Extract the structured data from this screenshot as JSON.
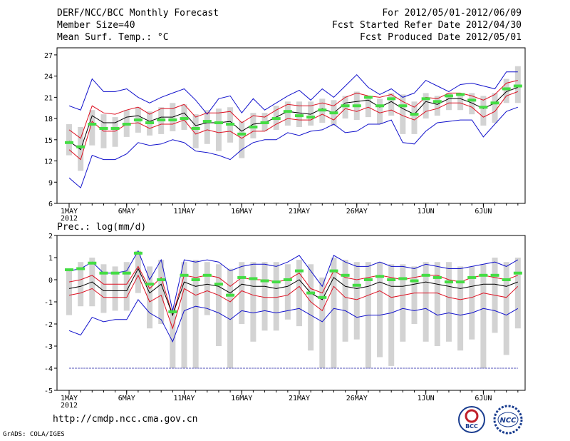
{
  "header": {
    "title": "DERF/NCC/BCC Monthly Forecast",
    "member_size": "Member Size=40",
    "variable1": "Mean Surf. Temp.: °C",
    "period": "For 2012/05/01-2012/06/09",
    "start_ref": "Fcst Started Refer Date 2012/04/30",
    "produced": "Fcst Produced Date 2012/05/01"
  },
  "footer": {
    "url": "http://cmdp.ncc.cma.gov.cn",
    "grads": "GrADS: COLA/IGES",
    "logo1": "BCC",
    "logo2": "NCC"
  },
  "colors": {
    "box": "#d3d3d3",
    "obs": "#44dd44",
    "ens": "#000000",
    "sd": "#dd1122",
    "ext": "#1111cc"
  },
  "chart_data": [
    {
      "type": "box",
      "title": "Mean Surf. Temp.: °C",
      "xlabel": "",
      "ylabel": "°C",
      "ylim": [
        6,
        28
      ],
      "yticks": [
        6,
        9,
        12,
        15,
        18,
        21,
        24,
        27
      ],
      "xticks": [
        {
          "day": 1,
          "label": "1MAY"
        },
        {
          "day": 6,
          "label": "6MAY"
        },
        {
          "day": 11,
          "label": "11MAY"
        },
        {
          "day": 16,
          "label": "16MAY"
        },
        {
          "day": 21,
          "label": "21MAY"
        },
        {
          "day": 26,
          "label": "26MAY"
        },
        {
          "day": 32,
          "label": "1JUN"
        },
        {
          "day": 37,
          "label": "6JUN"
        }
      ],
      "year_label": "2012",
      "x": [
        1,
        2,
        3,
        4,
        5,
        6,
        7,
        8,
        9,
        10,
        11,
        12,
        13,
        14,
        15,
        16,
        17,
        18,
        19,
        20,
        21,
        22,
        23,
        24,
        25,
        26,
        27,
        28,
        29,
        30,
        31,
        32,
        33,
        34,
        35,
        36,
        37,
        38,
        39,
        40
      ],
      "series": [
        {
          "name": "max",
          "values": [
            19.8,
            19.2,
            23.6,
            21.8,
            21.8,
            22.2,
            21.0,
            20.2,
            21.0,
            21.6,
            22.2,
            20.6,
            18.6,
            20.8,
            21.2,
            18.8,
            20.8,
            19.2,
            20.2,
            21.2,
            22.0,
            20.6,
            22.2,
            21.0,
            22.6,
            24.2,
            22.4,
            21.4,
            22.2,
            21.0,
            21.6,
            23.4,
            22.6,
            21.8,
            22.8,
            23.0,
            22.6,
            22.2,
            24.6,
            24.6
          ]
        },
        {
          "name": "plus_sd",
          "values": [
            16.4,
            15.2,
            19.8,
            18.8,
            18.6,
            19.2,
            19.6,
            18.6,
            19.4,
            19.4,
            20.0,
            18.2,
            18.8,
            18.8,
            19.0,
            17.4,
            18.4,
            18.2,
            19.2,
            20.0,
            19.8,
            19.8,
            20.2,
            19.8,
            21.0,
            21.6,
            21.2,
            21.0,
            21.4,
            20.4,
            19.6,
            21.0,
            20.8,
            21.6,
            21.6,
            21.2,
            20.6,
            21.4,
            23.0,
            23.4
          ]
        },
        {
          "name": "ensemble_mean",
          "values": [
            14.8,
            13.6,
            18.4,
            17.4,
            17.4,
            18.2,
            18.4,
            17.6,
            18.2,
            18.2,
            18.8,
            17.0,
            17.4,
            17.4,
            17.6,
            16.2,
            17.2,
            17.4,
            18.2,
            19.0,
            18.8,
            18.6,
            19.4,
            18.8,
            20.2,
            20.4,
            20.6,
            19.6,
            20.4,
            19.4,
            18.6,
            20.4,
            20.0,
            20.8,
            20.8,
            20.2,
            19.4,
            20.2,
            21.8,
            22.4
          ]
        },
        {
          "name": "minus_sd",
          "values": [
            13.6,
            12.2,
            17.6,
            16.2,
            16.2,
            17.2,
            17.4,
            16.6,
            17.2,
            17.2,
            17.8,
            15.8,
            16.4,
            16.0,
            16.2,
            15.2,
            16.2,
            16.2,
            17.2,
            18.0,
            17.8,
            17.8,
            18.6,
            17.8,
            19.4,
            19.0,
            19.6,
            18.8,
            19.2,
            18.4,
            17.8,
            19.0,
            19.4,
            20.2,
            20.2,
            19.6,
            18.2,
            19.0,
            21.2,
            21.8
          ]
        },
        {
          "name": "min",
          "values": [
            9.6,
            8.2,
            12.8,
            12.2,
            12.2,
            13.0,
            14.6,
            14.2,
            14.4,
            15.0,
            14.6,
            13.4,
            13.2,
            12.8,
            12.2,
            13.6,
            14.6,
            15.0,
            15.0,
            16.0,
            15.6,
            16.2,
            16.4,
            17.2,
            16.0,
            16.2,
            17.2,
            17.2,
            17.8,
            14.6,
            14.4,
            16.2,
            17.4,
            17.6,
            17.8,
            17.8,
            15.4,
            17.2,
            19.0,
            19.6
          ]
        },
        {
          "name": "box_high",
          "values": [
            17.2,
            16.8,
            19.2,
            18.6,
            18.2,
            19.2,
            19.6,
            19.0,
            19.6,
            20.2,
            20.0,
            18.6,
            19.2,
            19.4,
            19.6,
            17.6,
            18.8,
            18.8,
            19.8,
            20.4,
            20.4,
            20.4,
            20.8,
            20.6,
            21.2,
            21.8,
            21.2,
            20.8,
            21.6,
            21.4,
            20.4,
            21.6,
            21.2,
            21.6,
            21.6,
            21.6,
            21.2,
            21.6,
            23.6,
            25.4
          ]
        },
        {
          "name": "box_low",
          "values": [
            12.8,
            10.6,
            14.2,
            13.8,
            14.0,
            15.4,
            16.0,
            15.6,
            15.8,
            16.2,
            16.4,
            13.8,
            14.4,
            13.4,
            14.6,
            12.4,
            15.2,
            16.2,
            16.4,
            17.0,
            16.8,
            17.0,
            17.4,
            17.0,
            18.0,
            17.8,
            18.2,
            17.2,
            18.4,
            15.8,
            15.8,
            18.0,
            18.4,
            19.2,
            19.2,
            18.6,
            17.0,
            17.4,
            20.2,
            20.2
          ]
        },
        {
          "name": "observed",
          "values": [
            14.6,
            14.0,
            17.2,
            16.6,
            16.6,
            17.2,
            17.8,
            17.4,
            17.8,
            17.8,
            18.0,
            16.6,
            17.6,
            17.4,
            17.2,
            15.8,
            16.8,
            17.4,
            18.0,
            19.0,
            18.4,
            18.2,
            19.2,
            18.8,
            19.8,
            19.8,
            21.0,
            19.8,
            20.8,
            19.8,
            18.6,
            20.8,
            20.4,
            21.2,
            21.4,
            20.6,
            19.6,
            20.2,
            22.2,
            22.6
          ]
        }
      ]
    },
    {
      "type": "box",
      "title": "Prec.: log(mm/d)",
      "xlabel": "",
      "ylabel": "log(mm/d)",
      "ylim": [
        -5,
        2
      ],
      "yticks": [
        -5,
        -4,
        -3,
        -2,
        -1,
        0,
        1,
        2
      ],
      "xticks": [
        {
          "day": 1,
          "label": "1MAY"
        },
        {
          "day": 6,
          "label": "6MAY"
        },
        {
          "day": 11,
          "label": "11MAY"
        },
        {
          "day": 16,
          "label": "16MAY"
        },
        {
          "day": 21,
          "label": "21MAY"
        },
        {
          "day": 26,
          "label": "26MAY"
        },
        {
          "day": 32,
          "label": "1JUN"
        },
        {
          "day": 37,
          "label": "6JUN"
        }
      ],
      "year_label": "2012",
      "floor": -4,
      "x": [
        1,
        2,
        3,
        4,
        5,
        6,
        7,
        8,
        9,
        10,
        11,
        12,
        13,
        14,
        15,
        16,
        17,
        18,
        19,
        20,
        21,
        22,
        23,
        24,
        25,
        26,
        27,
        28,
        29,
        30,
        31,
        32,
        33,
        34,
        35,
        36,
        37,
        38,
        39,
        40
      ],
      "series": [
        {
          "name": "max",
          "values": [
            0.4,
            0.5,
            0.8,
            0.3,
            0.3,
            0.4,
            1.3,
            0.0,
            0.9,
            -1.4,
            0.9,
            0.8,
            0.9,
            0.8,
            0.4,
            0.6,
            0.7,
            0.7,
            0.6,
            0.8,
            1.1,
            0.4,
            -0.3,
            1.1,
            0.8,
            0.6,
            0.6,
            0.8,
            0.6,
            0.6,
            0.5,
            0.7,
            0.6,
            0.5,
            0.5,
            0.6,
            0.7,
            0.8,
            0.6,
            0.9
          ]
        },
        {
          "name": "plus_sd",
          "values": [
            -0.1,
            0.0,
            0.2,
            -0.2,
            -0.2,
            -0.2,
            0.6,
            -0.4,
            0.1,
            -1.6,
            0.2,
            0.1,
            0.2,
            0.1,
            -0.3,
            0.1,
            0.0,
            0.0,
            -0.1,
            0.0,
            0.3,
            -0.4,
            -0.6,
            0.4,
            0.1,
            0.0,
            0.1,
            0.2,
            0.1,
            0.0,
            0.1,
            0.2,
            0.2,
            0.0,
            -0.1,
            0.1,
            0.2,
            0.1,
            0.0,
            0.2
          ]
        },
        {
          "name": "ensemble_mean",
          "values": [
            -0.4,
            -0.3,
            -0.1,
            -0.5,
            -0.5,
            -0.5,
            0.5,
            -0.6,
            -0.2,
            -1.6,
            -0.1,
            -0.3,
            -0.2,
            -0.3,
            -0.6,
            -0.2,
            -0.3,
            -0.3,
            -0.4,
            -0.3,
            0.0,
            -0.6,
            -0.9,
            0.1,
            -0.3,
            -0.4,
            -0.3,
            -0.1,
            -0.3,
            -0.3,
            -0.2,
            -0.1,
            -0.2,
            -0.3,
            -0.4,
            -0.3,
            -0.2,
            -0.2,
            -0.3,
            -0.1
          ]
        },
        {
          "name": "minus_sd",
          "values": [
            -0.7,
            -0.6,
            -0.4,
            -0.8,
            -0.8,
            -0.8,
            0.2,
            -1.0,
            -0.7,
            -2.2,
            -0.4,
            -0.7,
            -0.5,
            -0.7,
            -1.0,
            -0.5,
            -0.7,
            -0.8,
            -0.8,
            -0.7,
            -0.3,
            -1.0,
            -1.4,
            -0.3,
            -0.8,
            -0.9,
            -0.7,
            -0.5,
            -0.8,
            -0.7,
            -0.6,
            -0.6,
            -0.6,
            -0.8,
            -0.9,
            -0.8,
            -0.6,
            -0.7,
            -0.8,
            -0.3
          ]
        },
        {
          "name": "min",
          "values": [
            -2.3,
            -2.5,
            -1.7,
            -1.9,
            -1.8,
            -1.8,
            -0.9,
            -1.5,
            -1.8,
            -2.8,
            -1.4,
            -1.2,
            -1.3,
            -1.5,
            -1.8,
            -1.4,
            -1.5,
            -1.4,
            -1.5,
            -1.4,
            -1.3,
            -1.6,
            -1.9,
            -1.3,
            -1.4,
            -1.7,
            -1.6,
            -1.6,
            -1.5,
            -1.3,
            -1.4,
            -1.3,
            -1.6,
            -1.5,
            -1.6,
            -1.5,
            -1.3,
            -1.4,
            -1.6,
            -1.3
          ]
        },
        {
          "name": "box_high",
          "values": [
            0.5,
            0.8,
            1.0,
            0.7,
            0.6,
            0.8,
            1.3,
            0.6,
            0.9,
            -1.3,
            0.8,
            0.9,
            0.8,
            0.7,
            0.5,
            0.8,
            0.8,
            0.8,
            0.8,
            0.7,
            0.9,
            0.7,
            0.1,
            1.0,
            0.9,
            0.8,
            0.8,
            0.8,
            0.7,
            0.7,
            0.6,
            0.8,
            0.8,
            0.8,
            0.6,
            0.6,
            0.7,
            1.0,
            0.8,
            1.0
          ]
        },
        {
          "name": "box_low",
          "values": [
            -1.6,
            -1.2,
            -1.2,
            -1.5,
            -1.4,
            -1.4,
            -0.6,
            -2.2,
            -2.0,
            -4.0,
            -4.0,
            -4.0,
            -1.6,
            -3.0,
            -4.0,
            -2.0,
            -2.8,
            -2.3,
            -2.3,
            -1.8,
            -2.1,
            -3.2,
            -4.0,
            -4.0,
            -2.8,
            -2.7,
            -4.0,
            -3.5,
            -3.9,
            -2.8,
            -2.0,
            -2.8,
            -3.0,
            -2.8,
            -3.2,
            -2.7,
            -4.0,
            -2.4,
            -3.4,
            -2.2
          ]
        },
        {
          "name": "observed",
          "values": [
            0.45,
            0.5,
            0.75,
            0.3,
            0.3,
            0.3,
            1.2,
            -0.2,
            0.0,
            -1.45,
            0.2,
            0.0,
            0.2,
            -0.2,
            -0.7,
            0.1,
            0.05,
            -0.05,
            -0.1,
            0.0,
            0.4,
            -0.6,
            -0.8,
            0.4,
            0.2,
            -0.25,
            0.0,
            0.15,
            0.0,
            0.05,
            -0.05,
            0.2,
            0.1,
            -0.1,
            -0.1,
            0.1,
            0.2,
            0.2,
            0.0,
            0.3
          ]
        }
      ]
    }
  ]
}
